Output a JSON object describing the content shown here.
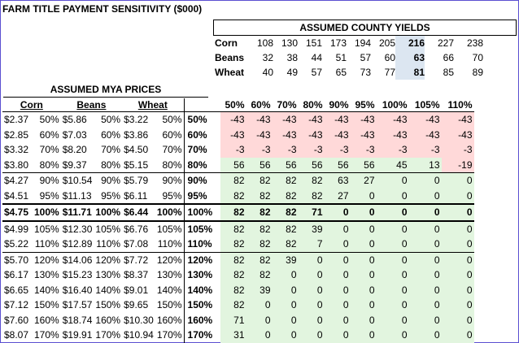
{
  "title": "FARM TITLE PAYMENT SENSITIVITY ($000)",
  "yields_header": "ASSUMED COUNTY YIELDS",
  "yields": [
    {
      "crop": "Corn",
      "values": [
        "108",
        "130",
        "151",
        "173",
        "194",
        "205",
        "216",
        "227",
        "238"
      ]
    },
    {
      "crop": "Beans",
      "values": [
        "32",
        "38",
        "44",
        "51",
        "57",
        "60",
        "63",
        "66",
        "70"
      ]
    },
    {
      "crop": "Wheat",
      "values": [
        "40",
        "49",
        "57",
        "65",
        "73",
        "77",
        "81",
        "85",
        "89"
      ]
    }
  ],
  "mya_header": "ASSUMED MYA PRICES",
  "crop_headers": [
    "Corn",
    "Beans",
    "Wheat"
  ],
  "yield_pcts": [
    "50%",
    "60%",
    "70%",
    "80%",
    "90%",
    "95%",
    "100%",
    "105%",
    "110%"
  ],
  "rows": [
    {
      "cp": "$2.37",
      "cpp": "50%",
      "bp": "$5.86",
      "bpp": "50%",
      "wp": "$3.22",
      "wpp": "50%",
      "yl": "50%",
      "vals": [
        "-43",
        "-43",
        "-43",
        "-43",
        "-43",
        "-43",
        "-43",
        "-43",
        "-43"
      ]
    },
    {
      "cp": "$2.85",
      "cpp": "60%",
      "bp": "$7.03",
      "bpp": "60%",
      "wp": "$3.86",
      "wpp": "60%",
      "yl": "60%",
      "vals": [
        "-43",
        "-43",
        "-43",
        "-43",
        "-43",
        "-43",
        "-43",
        "-43",
        "-43"
      ]
    },
    {
      "cp": "$3.32",
      "cpp": "70%",
      "bp": "$8.20",
      "bpp": "70%",
      "wp": "$4.50",
      "wpp": "70%",
      "yl": "70%",
      "vals": [
        "-3",
        "-3",
        "-3",
        "-3",
        "-3",
        "-3",
        "-3",
        "-3",
        "-3"
      ]
    },
    {
      "cp": "$3.80",
      "cpp": "80%",
      "bp": "$9.37",
      "bpp": "80%",
      "wp": "$5.15",
      "wpp": "80%",
      "yl": "80%",
      "vals": [
        "56",
        "56",
        "56",
        "56",
        "56",
        "56",
        "45",
        "13",
        "-19"
      ]
    },
    {
      "cp": "$4.27",
      "cpp": "90%",
      "bp": "$10.54",
      "bpp": "90%",
      "wp": "$5.79",
      "wpp": "90%",
      "yl": "90%",
      "vals": [
        "82",
        "82",
        "82",
        "82",
        "63",
        "27",
        "0",
        "0",
        "0"
      ]
    },
    {
      "cp": "$4.51",
      "cpp": "95%",
      "bp": "$11.13",
      "bpp": "95%",
      "wp": "$6.11",
      "wpp": "95%",
      "yl": "95%",
      "vals": [
        "82",
        "82",
        "82",
        "82",
        "27",
        "0",
        "0",
        "0",
        "0"
      ]
    },
    {
      "cp": "$4.75",
      "cpp": "100%",
      "bp": "$11.71",
      "bpp": "100%",
      "wp": "$6.44",
      "wpp": "100%",
      "yl": "100%",
      "vals": [
        "82",
        "82",
        "82",
        "71",
        "0",
        "0",
        "0",
        "0",
        "0"
      ]
    },
    {
      "cp": "$4.99",
      "cpp": "105%",
      "bp": "$12.30",
      "bpp": "105%",
      "wp": "$6.76",
      "wpp": "105%",
      "yl": "105%",
      "vals": [
        "82",
        "82",
        "82",
        "39",
        "0",
        "0",
        "0",
        "0",
        "0"
      ]
    },
    {
      "cp": "$5.22",
      "cpp": "110%",
      "bp": "$12.89",
      "bpp": "110%",
      "wp": "$7.08",
      "wpp": "110%",
      "yl": "110%",
      "vals": [
        "82",
        "82",
        "82",
        "7",
        "0",
        "0",
        "0",
        "0",
        "0"
      ]
    },
    {
      "cp": "$5.70",
      "cpp": "120%",
      "bp": "$14.06",
      "bpp": "120%",
      "wp": "$7.72",
      "wpp": "120%",
      "yl": "120%",
      "vals": [
        "82",
        "82",
        "39",
        "0",
        "0",
        "0",
        "0",
        "0",
        "0"
      ]
    },
    {
      "cp": "$6.17",
      "cpp": "130%",
      "bp": "$15.23",
      "bpp": "130%",
      "wp": "$8.37",
      "wpp": "130%",
      "yl": "130%",
      "vals": [
        "82",
        "82",
        "0",
        "0",
        "0",
        "0",
        "0",
        "0",
        "0"
      ]
    },
    {
      "cp": "$6.65",
      "cpp": "140%",
      "bp": "$16.40",
      "bpp": "140%",
      "wp": "$9.01",
      "wpp": "140%",
      "yl": "140%",
      "vals": [
        "82",
        "39",
        "0",
        "0",
        "0",
        "0",
        "0",
        "0",
        "0"
      ]
    },
    {
      "cp": "$7.12",
      "cpp": "150%",
      "bp": "$17.57",
      "bpp": "150%",
      "wp": "$9.65",
      "wpp": "150%",
      "yl": "150%",
      "vals": [
        "82",
        "0",
        "0",
        "0",
        "0",
        "0",
        "0",
        "0",
        "0"
      ]
    },
    {
      "cp": "$7.60",
      "cpp": "160%",
      "bp": "$18.74",
      "bpp": "160%",
      "wp": "$10.30",
      "wpp": "160%",
      "yl": "160%",
      "vals": [
        "71",
        "0",
        "0",
        "0",
        "0",
        "0",
        "0",
        "0",
        "0"
      ]
    },
    {
      "cp": "$8.07",
      "cpp": "170%",
      "bp": "$19.91",
      "bpp": "170%",
      "wp": "$10.94",
      "wpp": "170%",
      "yl": "170%",
      "vals": [
        "31",
        "0",
        "0",
        "0",
        "0",
        "0",
        "0",
        "0",
        "0"
      ]
    }
  ],
  "colors": {
    "negative": "#ffd9d9",
    "positive": "#e2f5df",
    "base": "#dce6f1",
    "frame": "#5b4fd1"
  }
}
